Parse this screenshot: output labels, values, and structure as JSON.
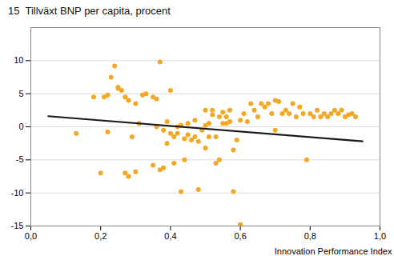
{
  "chart_data": {
    "type": "scatter",
    "title": "15  Tillväxt BNP per capita, procent",
    "xlabel": "Innovation Performance Index",
    "xlim": [
      0.0,
      1.0
    ],
    "ylim": [
      -15,
      15
    ],
    "xticks": [
      {
        "value": 0.0,
        "label": "0,0"
      },
      {
        "value": 0.2,
        "label": "0,2"
      },
      {
        "value": 0.4,
        "label": "0,4"
      },
      {
        "value": 0.6,
        "label": "0,6"
      },
      {
        "value": 0.8,
        "label": "0,8"
      },
      {
        "value": 1.0,
        "label": "1,0"
      }
    ],
    "yticks": [
      -15,
      -10,
      -5,
      0,
      5,
      10
    ],
    "grid": "y",
    "series": [
      {
        "type": "scatter",
        "color": "#F5A623",
        "x": [
          0.13,
          0.18,
          0.2,
          0.21,
          0.22,
          0.22,
          0.23,
          0.24,
          0.25,
          0.25,
          0.26,
          0.27,
          0.27,
          0.28,
          0.28,
          0.29,
          0.3,
          0.3,
          0.31,
          0.32,
          0.33,
          0.35,
          0.35,
          0.36,
          0.36,
          0.37,
          0.37,
          0.38,
          0.38,
          0.39,
          0.39,
          0.4,
          0.4,
          0.41,
          0.41,
          0.42,
          0.42,
          0.43,
          0.43,
          0.44,
          0.44,
          0.45,
          0.45,
          0.46,
          0.47,
          0.47,
          0.48,
          0.48,
          0.49,
          0.5,
          0.5,
          0.5,
          0.51,
          0.51,
          0.52,
          0.52,
          0.53,
          0.53,
          0.54,
          0.54,
          0.55,
          0.55,
          0.56,
          0.56,
          0.57,
          0.57,
          0.58,
          0.58,
          0.59,
          0.6,
          0.6,
          0.61,
          0.62,
          0.63,
          0.64,
          0.65,
          0.66,
          0.67,
          0.68,
          0.69,
          0.7,
          0.7,
          0.71,
          0.72,
          0.73,
          0.74,
          0.75,
          0.76,
          0.77,
          0.78,
          0.79,
          0.8,
          0.81,
          0.82,
          0.83,
          0.84,
          0.85,
          0.86,
          0.87,
          0.88,
          0.89,
          0.9,
          0.91,
          0.92,
          0.93
        ],
        "values": [
          -1.0,
          4.5,
          -7.0,
          4.5,
          4.8,
          -0.8,
          7.5,
          9.2,
          5.8,
          6.0,
          5.5,
          4.5,
          -7.0,
          4.0,
          -7.5,
          -1.5,
          3.5,
          -6.8,
          0.5,
          4.8,
          5.0,
          4.5,
          -5.8,
          0.0,
          4.2,
          -6.5,
          9.8,
          -6.2,
          -0.5,
          -2.5,
          0.8,
          -1.0,
          5.5,
          -1.5,
          -5.5,
          0.0,
          -1.0,
          -9.8,
          0.2,
          -5.0,
          -1.8,
          -1.2,
          0.5,
          -2.0,
          1.0,
          -1.5,
          -9.5,
          -2.2,
          -0.5,
          2.5,
          -3.2,
          0.2,
          0.5,
          -1.5,
          2.5,
          1.8,
          -5.5,
          -1.5,
          1.5,
          -5.0,
          2.2,
          0.5,
          0.5,
          1.5,
          0.8,
          2.5,
          -9.8,
          -3.5,
          -2.0,
          -14.8,
          1.0,
          2.0,
          0.8,
          3.5,
          2.5,
          1.5,
          3.5,
          3.0,
          3.5,
          2.0,
          4.0,
          -0.5,
          3.8,
          2.0,
          2.5,
          2.0,
          3.5,
          1.5,
          3.0,
          2.0,
          -5.0,
          2.0,
          1.5,
          2.5,
          1.5,
          2.0,
          1.5,
          2.0,
          2.5,
          2.0,
          2.5,
          1.5,
          1.8,
          2.0,
          1.5
        ]
      },
      {
        "type": "line",
        "color": "#1a1a1a",
        "x": [
          0.05,
          0.95
        ],
        "values": [
          1.6,
          -2.2
        ]
      }
    ]
  }
}
